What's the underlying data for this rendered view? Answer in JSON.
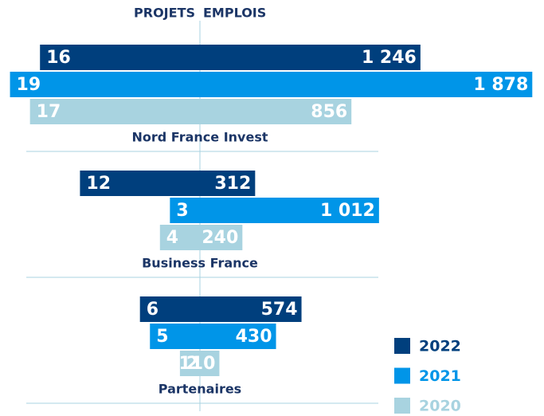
{
  "chart_data": {
    "type": "butterfly",
    "left_title": "PROJETS",
    "right_title": "EMPLOIS",
    "categories": [
      "Nord France Invest",
      "Business France",
      "Partenaires"
    ],
    "series": [
      {
        "name": "2022",
        "color": "#003f7d",
        "projets": [
          16,
          12,
          6
        ],
        "emplois": [
          1246,
          312,
          574
        ],
        "emplois_labels": [
          "1 246",
          "312",
          "574"
        ]
      },
      {
        "name": "2021",
        "color": "#0095e8",
        "projets": [
          19,
          3,
          5
        ],
        "emplois": [
          1878,
          1012,
          430
        ],
        "emplois_labels": [
          "1 878",
          "1 012",
          "430"
        ]
      },
      {
        "name": "2020",
        "color": "#a8d3e0",
        "projets": [
          17,
          4,
          2
        ],
        "emplois": [
          856,
          240,
          110
        ],
        "emplois_labels": [
          "856",
          "240",
          "110"
        ]
      }
    ],
    "legend": "bottom-right"
  }
}
